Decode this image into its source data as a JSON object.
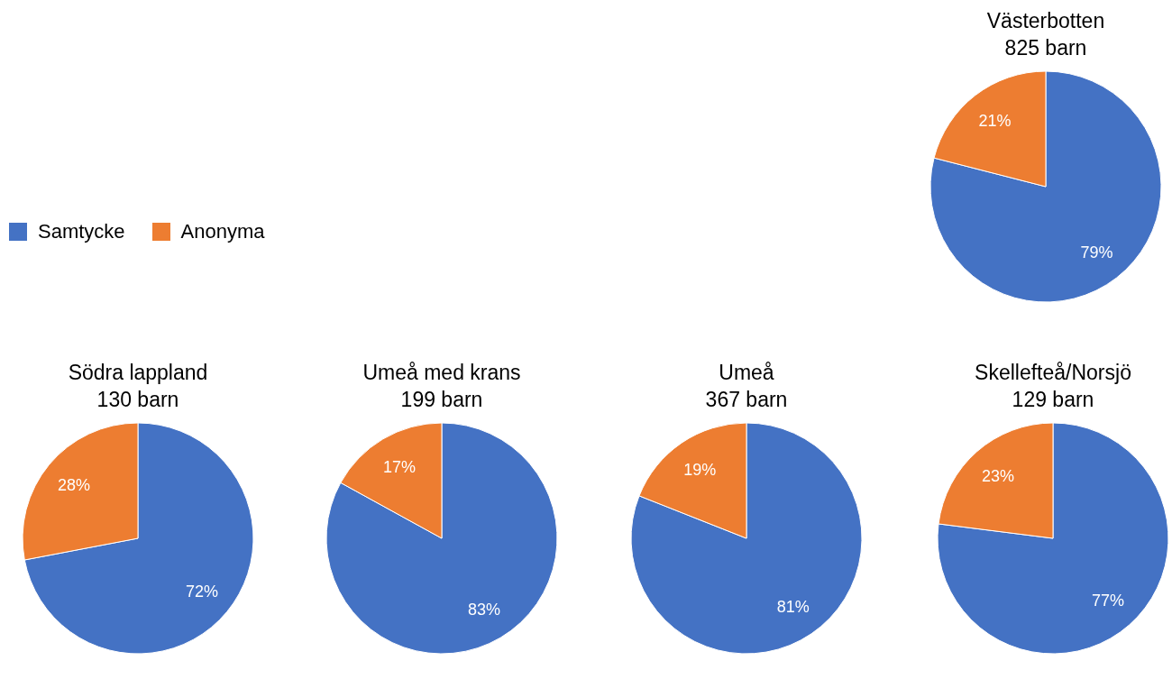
{
  "chart_data": [
    {
      "type": "pie",
      "title": "Västerbotten",
      "subtitle": "825 barn",
      "categories": [
        "Samtycke",
        "Anonyma"
      ],
      "values": [
        79,
        21
      ],
      "colors": [
        "#4472c4",
        "#ed7d31"
      ],
      "value_labels": [
        "79%",
        "21%"
      ],
      "legend": "left"
    },
    {
      "type": "pie",
      "title": "Södra lappland",
      "subtitle": "130 barn",
      "categories": [
        null,
        null
      ],
      "values": [
        72,
        28
      ],
      "colors": [
        "#4472c4",
        "#ed7d31"
      ],
      "value_labels": [
        "72%",
        "28%"
      ]
    },
    {
      "type": "pie",
      "title": "Umeå med krans",
      "subtitle": "199 barn",
      "categories": [
        null,
        null
      ],
      "values": [
        83,
        17
      ],
      "colors": [
        "#4472c4",
        "#ed7d31"
      ],
      "value_labels": [
        "83%",
        "17%"
      ]
    },
    {
      "type": "pie",
      "title": "Umeå",
      "subtitle": "367 barn",
      "categories": [
        null,
        null
      ],
      "values": [
        81,
        19
      ],
      "colors": [
        "#4472c4",
        "#ed7d31"
      ],
      "value_labels": [
        "81%",
        "19%"
      ]
    },
    {
      "type": "pie",
      "title": "Skellefteå/Norsjö",
      "subtitle": "129 barn",
      "categories": [
        null,
        null
      ],
      "values": [
        77,
        23
      ],
      "colors": [
        "#4472c4",
        "#ed7d31"
      ],
      "value_labels": [
        "77%",
        "23%"
      ]
    }
  ]
}
